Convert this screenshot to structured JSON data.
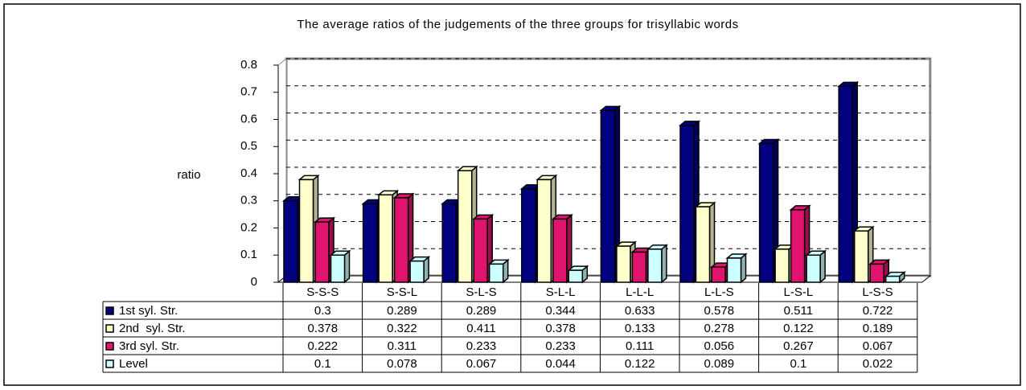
{
  "chart_data": {
    "type": "bar",
    "title": "The average ratios of the judgements of the three groups for trisyllabic words",
    "ylabel": "ratio",
    "categories": [
      "S-S-S",
      "S-S-L",
      "S-L-S",
      "S-L-L",
      "L-L-L",
      "L-L-S",
      "L-S-L",
      "L-S-S"
    ],
    "series": [
      {
        "name": "1st syl. Str.",
        "color": "#000080",
        "values": [
          0.3,
          0.289,
          0.289,
          0.344,
          0.633,
          0.578,
          0.511,
          0.722
        ]
      },
      {
        "name": "2nd  syl. Str.",
        "color": "#ffffcc",
        "values": [
          0.378,
          0.322,
          0.411,
          0.378,
          0.133,
          0.278,
          0.122,
          0.189
        ]
      },
      {
        "name": "3rd syl. Str.",
        "color": "#e0146e",
        "values": [
          0.222,
          0.311,
          0.233,
          0.233,
          0.111,
          0.056,
          0.267,
          0.067
        ]
      },
      {
        "name": "Level",
        "color": "#ccffff",
        "values": [
          0.1,
          0.078,
          0.067,
          0.044,
          0.122,
          0.089,
          0.1,
          0.022
        ]
      }
    ],
    "ylim": [
      0,
      0.8
    ],
    "yticks": [
      0,
      0.1,
      0.2,
      0.3,
      0.4,
      0.5,
      0.6,
      0.7,
      0.8
    ],
    "grid": true
  }
}
